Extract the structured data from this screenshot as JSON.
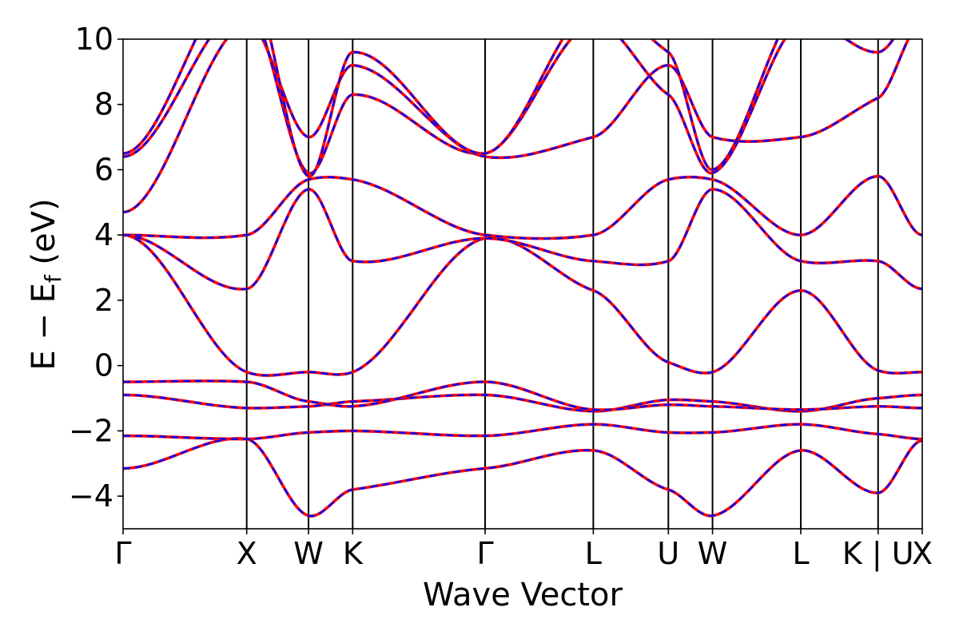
{
  "chart_data": {
    "type": "line",
    "title": "",
    "xlabel": "Wave Vector",
    "ylabel": "E − E_f (eV)",
    "ylabel_main": "E − E",
    "ylabel_sub": "f",
    "ylabel_tail": " (eV)",
    "ylim": [
      -5,
      10
    ],
    "yticks": [
      -4,
      -2,
      0,
      2,
      4,
      6,
      8,
      10
    ],
    "ytick_labels": [
      "−4",
      "−2",
      "0",
      "2",
      "4",
      "6",
      "8",
      "10"
    ],
    "grid": false,
    "legend": "none",
    "kpath_positions": [
      0,
      2.8,
      4.2,
      5.2,
      8.2,
      10.65,
      12.35,
      13.35,
      15.35,
      17.1,
      18.1
    ],
    "kpath_labels": [
      "Γ",
      "X",
      "W",
      "K",
      "Γ",
      "L",
      "U",
      "W",
      "L",
      "K | U",
      "X"
    ],
    "series_styles": [
      {
        "style": "solid",
        "color": "#ff0000"
      },
      {
        "style": "dashed",
        "color": "#0000ff"
      }
    ],
    "bands": [
      {
        "x": [
          0,
          2.8,
          4.2,
          5.2,
          8.2,
          10.65,
          12.35,
          13.35,
          15.35,
          17.1,
          18.1
        ],
        "y": [
          -3.15,
          -2.25,
          -4.6,
          -3.8,
          -3.15,
          -2.6,
          -3.8,
          -4.6,
          -2.6,
          -3.9,
          -2.3
        ]
      },
      {
        "x": [
          0,
          2.8,
          4.2,
          5.2,
          8.2,
          10.65,
          12.35,
          13.35,
          15.35,
          17.1,
          18.1
        ],
        "y": [
          -2.15,
          -2.25,
          -2.05,
          -2.0,
          -2.15,
          -1.8,
          -2.05,
          -2.05,
          -1.8,
          -2.1,
          -2.25
        ]
      },
      {
        "x": [
          0,
          2.8,
          4.2,
          5.2,
          8.2,
          10.65,
          12.35,
          13.35,
          15.35,
          17.1,
          18.1
        ],
        "y": [
          -0.9,
          -1.3,
          -1.25,
          -1.1,
          -0.9,
          -1.4,
          -1.05,
          -1.1,
          -1.4,
          -1.0,
          -0.9
        ]
      },
      {
        "x": [
          0,
          2.8,
          4.2,
          5.2,
          8.2,
          10.65,
          12.35,
          13.35,
          15.35,
          17.1,
          18.1
        ],
        "y": [
          -0.5,
          -0.5,
          -1.1,
          -1.25,
          -0.5,
          -1.35,
          -1.2,
          -1.25,
          -1.35,
          -1.25,
          -1.3
        ]
      },
      {
        "x": [
          0,
          2.8,
          4.2,
          5.2,
          8.2,
          10.65,
          12.35,
          13.35,
          15.35,
          17.1,
          18.1
        ],
        "y": [
          4.0,
          -0.2,
          -0.2,
          -0.2,
          3.9,
          2.3,
          0.1,
          -0.2,
          2.3,
          -0.15,
          -0.2
        ]
      },
      {
        "x": [
          0,
          2.8,
          4.2,
          5.2,
          8.2,
          10.65,
          12.35,
          13.35,
          15.35,
          17.1,
          18.1
        ],
        "y": [
          4.0,
          2.35,
          5.4,
          3.2,
          3.9,
          3.2,
          3.2,
          5.4,
          3.2,
          3.2,
          2.35
        ]
      },
      {
        "x": [
          0,
          2.8,
          4.2,
          5.2,
          8.2,
          10.65,
          12.35,
          13.35,
          15.35,
          17.1,
          18.1
        ],
        "y": [
          4.0,
          4.0,
          5.7,
          5.7,
          4.0,
          4.0,
          5.7,
          5.7,
          4.0,
          5.8,
          4.0
        ]
      },
      {
        "x": [
          0,
          2.8,
          4.2,
          5.2,
          8.2,
          10.65,
          12.35,
          13.35,
          15.35,
          17.1,
          18.1
        ],
        "y": [
          4.7,
          10.5,
          7.0,
          9.2,
          6.4,
          7.0,
          9.2,
          7.0,
          7.0,
          8.2,
          10.5
        ]
      },
      {
        "x": [
          0,
          2.8,
          4.2,
          5.2,
          8.2,
          10.65,
          12.35,
          13.35,
          15.35,
          17.1,
          18.1
        ],
        "y": [
          6.4,
          11.0,
          5.9,
          8.3,
          6.5,
          10.5,
          8.3,
          5.9,
          10.5,
          9.6,
          11.0
        ]
      },
      {
        "x": [
          0,
          2.8,
          4.2,
          5.2,
          8.2,
          10.65,
          12.35,
          13.35,
          15.35,
          17.1,
          18.1
        ],
        "y": [
          6.5,
          12.0,
          5.8,
          9.6,
          6.5,
          11.0,
          9.6,
          6.0,
          11.0,
          10.5,
          12.0
        ]
      }
    ]
  }
}
